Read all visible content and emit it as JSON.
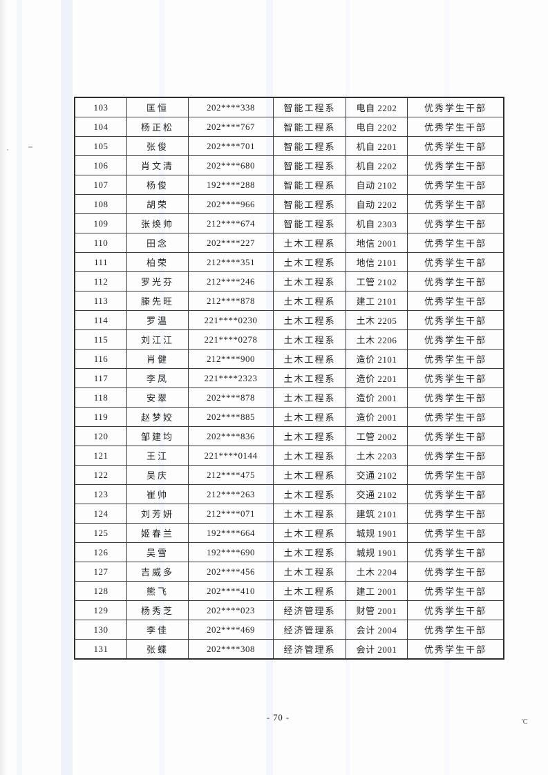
{
  "colors": {
    "paper": "#fdfdfe",
    "ink": "#1f1f1f",
    "table_border": "#2e2e2e",
    "streak_blue": "#bcd2eb"
  },
  "footer": {
    "page_number": "- 70 -",
    "corner_mark": "'C"
  },
  "table": {
    "column_keys": [
      "index",
      "name",
      "student_id",
      "department",
      "class_name",
      "award"
    ],
    "rows": [
      {
        "index": "103",
        "name": "匡恒",
        "student_id": "202****338",
        "department": "智能工程系",
        "class_name": "电自 2202",
        "award": "优秀学生干部"
      },
      {
        "index": "104",
        "name": "杨正松",
        "student_id": "202****767",
        "department": "智能工程系",
        "class_name": "电自 2202",
        "award": "优秀学生干部"
      },
      {
        "index": "105",
        "name": "张俊",
        "student_id": "202****701",
        "department": "智能工程系",
        "class_name": "机自 2201",
        "award": "优秀学生干部"
      },
      {
        "index": "106",
        "name": "肖文清",
        "student_id": "202****680",
        "department": "智能工程系",
        "class_name": "机自 2202",
        "award": "优秀学生干部"
      },
      {
        "index": "107",
        "name": "杨俊",
        "student_id": "192****288",
        "department": "智能工程系",
        "class_name": "自动 2102",
        "award": "优秀学生干部"
      },
      {
        "index": "108",
        "name": "胡荣",
        "student_id": "202****966",
        "department": "智能工程系",
        "class_name": "自动 2202",
        "award": "优秀学生干部"
      },
      {
        "index": "109",
        "name": "张焕帅",
        "student_id": "212****674",
        "department": "智能工程系",
        "class_name": "机自 2303",
        "award": "优秀学生干部"
      },
      {
        "index": "110",
        "name": "田念",
        "student_id": "202****227",
        "department": "土木工程系",
        "class_name": "地信 2001",
        "award": "优秀学生干部"
      },
      {
        "index": "111",
        "name": "柏荣",
        "student_id": "212****351",
        "department": "土木工程系",
        "class_name": "地信 2101",
        "award": "优秀学生干部"
      },
      {
        "index": "112",
        "name": "罗光芬",
        "student_id": "212****246",
        "department": "土木工程系",
        "class_name": "工管 2102",
        "award": "优秀学生干部"
      },
      {
        "index": "113",
        "name": "滕先旺",
        "student_id": "212****878",
        "department": "土木工程系",
        "class_name": "建工 2101",
        "award": "优秀学生干部"
      },
      {
        "index": "114",
        "name": "罗温",
        "student_id": "221****0230",
        "department": "土木工程系",
        "class_name": "土木 2205",
        "award": "优秀学生干部"
      },
      {
        "index": "115",
        "name": "刘江江",
        "student_id": "221****0278",
        "department": "土木工程系",
        "class_name": "土木 2206",
        "award": "优秀学生干部"
      },
      {
        "index": "116",
        "name": "肖健",
        "student_id": "212****900",
        "department": "土木工程系",
        "class_name": "造价 2101",
        "award": "优秀学生干部"
      },
      {
        "index": "117",
        "name": "李凤",
        "student_id": "221****2323",
        "department": "土木工程系",
        "class_name": "造价 2201",
        "award": "优秀学生干部"
      },
      {
        "index": "118",
        "name": "安翠",
        "student_id": "202****878",
        "department": "土木工程系",
        "class_name": "造价 2001",
        "award": "优秀学生干部"
      },
      {
        "index": "119",
        "name": "赵梦姣",
        "student_id": "202****885",
        "department": "土木工程系",
        "class_name": "造价 2001",
        "award": "优秀学生干部"
      },
      {
        "index": "120",
        "name": "邹建均",
        "student_id": "202****836",
        "department": "土木工程系",
        "class_name": "工管 2002",
        "award": "优秀学生干部"
      },
      {
        "index": "121",
        "name": "王江",
        "student_id": "221****0144",
        "department": "土木工程系",
        "class_name": "土木 2203",
        "award": "优秀学生干部"
      },
      {
        "index": "122",
        "name": "吴庆",
        "student_id": "212****475",
        "department": "土木工程系",
        "class_name": "交通 2102",
        "award": "优秀学生干部"
      },
      {
        "index": "123",
        "name": "崔帅",
        "student_id": "212****263",
        "department": "土木工程系",
        "class_name": "交通 2102",
        "award": "优秀学生干部"
      },
      {
        "index": "124",
        "name": "刘芳妍",
        "student_id": "212****071",
        "department": "土木工程系",
        "class_name": "建筑 2101",
        "award": "优秀学生干部"
      },
      {
        "index": "125",
        "name": "姬春兰",
        "student_id": "192****664",
        "department": "土木工程系",
        "class_name": "城规 1901",
        "award": "优秀学生干部"
      },
      {
        "index": "126",
        "name": "吴雪",
        "student_id": "192****690",
        "department": "土木工程系",
        "class_name": "城规 1901",
        "award": "优秀学生干部"
      },
      {
        "index": "127",
        "name": "吉威多",
        "student_id": "202****456",
        "department": "土木工程系",
        "class_name": "土木 2204",
        "award": "优秀学生干部"
      },
      {
        "index": "128",
        "name": "熊飞",
        "student_id": "202****410",
        "department": "土木工程系",
        "class_name": "建工 2001",
        "award": "优秀学生干部"
      },
      {
        "index": "129",
        "name": "杨秀芝",
        "student_id": "202****023",
        "department": "经济管理系",
        "class_name": "财管 2001",
        "award": "优秀学生干部"
      },
      {
        "index": "130",
        "name": "李佳",
        "student_id": "202****469",
        "department": "经济管理系",
        "class_name": "会计 2004",
        "award": "优秀学生干部"
      },
      {
        "index": "131",
        "name": "张蝶",
        "student_id": "202****308",
        "department": "经济管理系",
        "class_name": "会计 2001",
        "award": "优秀学生干部"
      }
    ]
  }
}
